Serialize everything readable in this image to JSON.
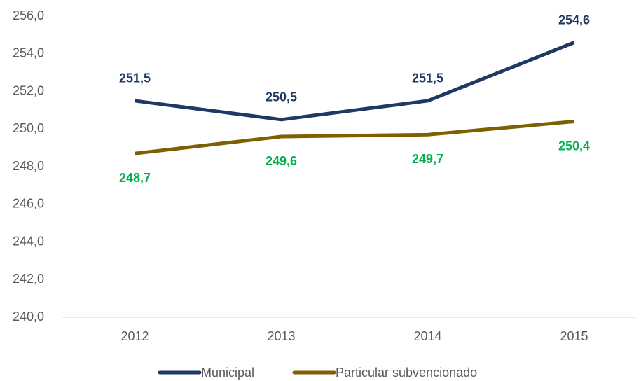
{
  "chart_data": {
    "type": "line",
    "categories": [
      "2012",
      "2013",
      "2014",
      "2015"
    ],
    "series": [
      {
        "name": "Municipal",
        "color": "#203864",
        "label_color": "#203864",
        "values": [
          251.5,
          250.5,
          251.5,
          254.6
        ],
        "value_labels": [
          "251,5",
          "250,5",
          "251,5",
          "254,6"
        ]
      },
      {
        "name": "Particular subvencionado",
        "color": "#7f6000",
        "label_color": "#00b050",
        "values": [
          248.7,
          249.6,
          249.7,
          250.4
        ],
        "value_labels": [
          "248,7",
          "249,6",
          "249,7",
          "250,4"
        ]
      }
    ],
    "ylim": [
      240,
      256
    ],
    "yticks": [
      {
        "value": 240,
        "label": "240,0"
      },
      {
        "value": 242,
        "label": "242,0"
      },
      {
        "value": 244,
        "label": "244,0"
      },
      {
        "value": 246,
        "label": "246,0"
      },
      {
        "value": 248,
        "label": "248,0"
      },
      {
        "value": 250,
        "label": "250,0"
      },
      {
        "value": 252,
        "label": "252,0"
      },
      {
        "value": 254,
        "label": "254,0"
      },
      {
        "value": 256,
        "label": "256,0"
      }
    ],
    "grid": false,
    "legend": "bottom"
  }
}
